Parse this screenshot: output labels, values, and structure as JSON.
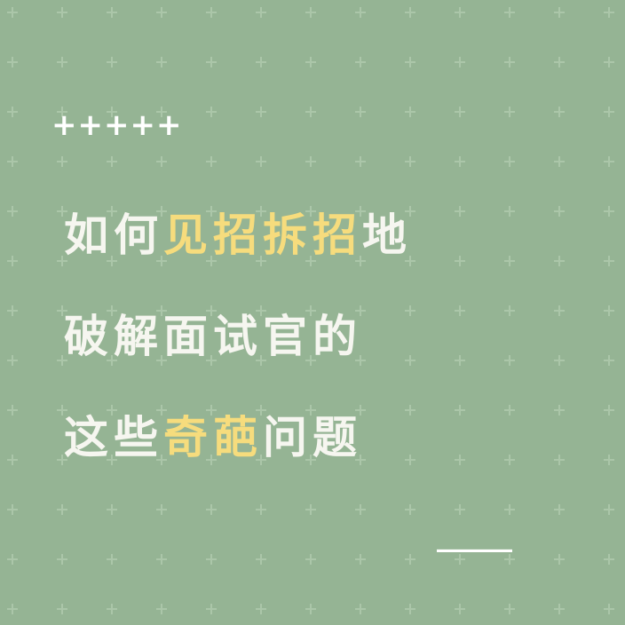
{
  "decor": {
    "top_plus": "+++++",
    "bottom_dash": "_____"
  },
  "headline": {
    "line1": {
      "a": "如何",
      "b": "见招拆招",
      "c": "地"
    },
    "line2": {
      "a": "破解面试官的"
    },
    "line3": {
      "a": "这些",
      "b": "奇葩",
      "c": "问题"
    }
  },
  "colors": {
    "background": "#95b494",
    "grid_plus": "#abc6a9",
    "text": "#f6f6f0",
    "highlight": "#f6dc7d"
  }
}
